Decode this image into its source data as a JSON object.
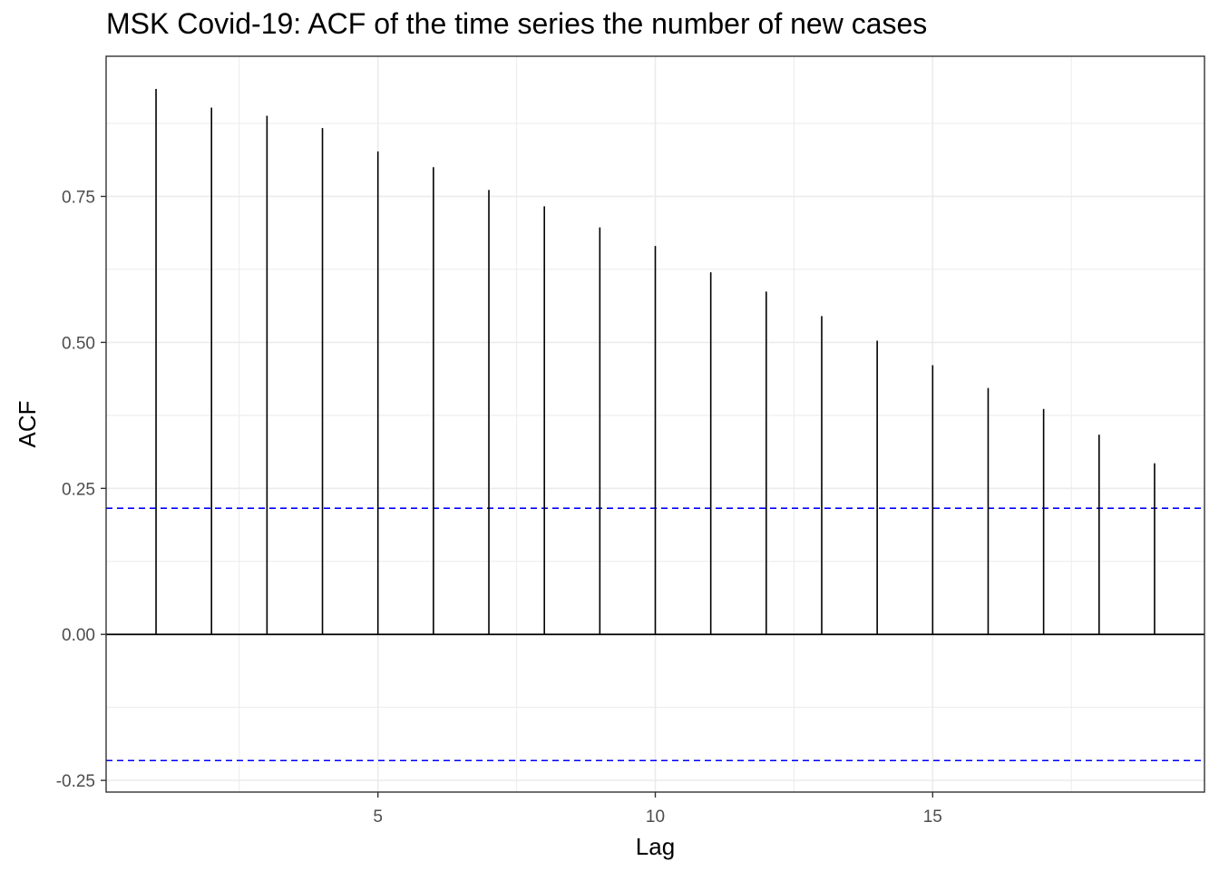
{
  "chart_data": {
    "type": "bar",
    "title": "MSK Covid-19: ACF of the time series the number of new cases",
    "xlabel": "Lag",
    "ylabel": "ACF",
    "x": [
      1,
      2,
      3,
      4,
      5,
      6,
      7,
      8,
      9,
      10,
      11,
      12,
      13,
      14,
      15,
      16,
      17,
      18,
      19
    ],
    "values": [
      0.934,
      0.902,
      0.888,
      0.867,
      0.827,
      0.8,
      0.761,
      0.733,
      0.697,
      0.665,
      0.62,
      0.587,
      0.545,
      0.503,
      0.461,
      0.422,
      0.386,
      0.342,
      0.293
    ],
    "confidence_bounds": [
      0.216,
      -0.216
    ],
    "xlim": [
      0.1,
      19.9
    ],
    "ylim": [
      -0.27,
      0.99
    ],
    "xticks": [
      5,
      10,
      15
    ],
    "xtick_labels": [
      "5",
      "10",
      "15"
    ],
    "yticks": [
      -0.25,
      0,
      0.25,
      0.5,
      0.75
    ],
    "ytick_labels": [
      "-0.25",
      "0.00",
      "0.25",
      "0.50",
      "0.75"
    ],
    "grid": true,
    "colors": {
      "bars": "#000000",
      "bounds": "#0000ff",
      "grid": "#ebebeb",
      "tick_text": "#4d4d4d",
      "panel_border": "#333333"
    }
  }
}
